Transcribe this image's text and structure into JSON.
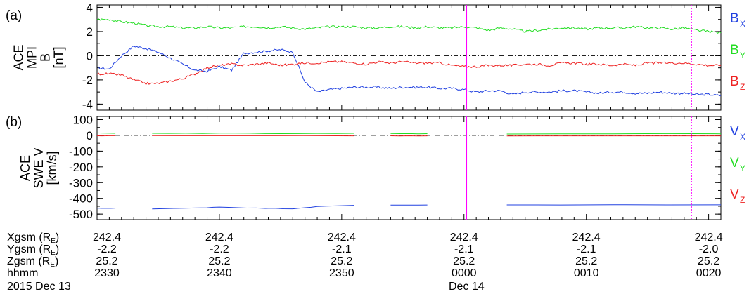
{
  "chart_data": [
    {
      "type": "line",
      "panel_label": "(a)",
      "ylabel_lines": [
        "ACE",
        "MPI",
        "B",
        "[nT]"
      ],
      "ylim": [
        -4.5,
        4.2
      ],
      "yticks": [
        -4,
        -2,
        0,
        2,
        4
      ],
      "x_range_minutes": [
        0,
        51
      ],
      "series": [
        {
          "name": "B",
          "subscript": "X",
          "color": "#2040e0",
          "x": [
            0,
            1,
            2,
            3,
            4,
            5,
            6,
            7,
            8,
            9,
            10,
            11,
            12,
            13,
            14,
            15,
            16,
            17,
            18,
            19,
            20,
            21,
            22,
            23,
            24,
            25,
            26,
            27,
            28,
            29,
            30,
            31,
            32,
            33,
            34,
            35,
            36,
            37,
            38,
            39,
            40,
            41,
            42,
            43,
            44,
            45,
            46,
            47,
            48,
            49,
            50,
            51
          ],
          "values": [
            -1.0,
            -1.1,
            0.0,
            0.8,
            0.6,
            0.3,
            -0.2,
            -0.7,
            -1.2,
            -1.3,
            -0.9,
            -1.2,
            0.2,
            0.3,
            0.4,
            0.5,
            0.3,
            -2.2,
            -3.0,
            -2.8,
            -2.7,
            -2.6,
            -2.6,
            -2.6,
            -2.7,
            -2.6,
            -2.6,
            -2.6,
            -2.7,
            -2.7,
            -2.8,
            -3.0,
            -2.9,
            -2.9,
            -3.2,
            -3.0,
            -3.0,
            -3.0,
            -2.9,
            -2.9,
            -3.0,
            -3.1,
            -3.0,
            -3.0,
            -3.1,
            -3.1,
            -3.0,
            -3.1,
            -3.1,
            -3.2,
            -3.2,
            -3.3
          ]
        },
        {
          "name": "B",
          "subscript": "Y",
          "color": "#22dd22",
          "x": [
            0,
            1,
            2,
            3,
            4,
            5,
            6,
            7,
            8,
            9,
            10,
            11,
            12,
            13,
            14,
            15,
            16,
            17,
            18,
            19,
            20,
            21,
            22,
            23,
            24,
            25,
            26,
            27,
            28,
            29,
            30,
            31,
            32,
            33,
            34,
            35,
            36,
            37,
            38,
            39,
            40,
            41,
            42,
            43,
            44,
            45,
            46,
            47,
            48,
            49,
            50,
            51
          ],
          "values": [
            3.0,
            3.0,
            2.8,
            2.7,
            2.5,
            2.4,
            2.4,
            2.3,
            2.3,
            2.4,
            2.3,
            2.3,
            2.4,
            2.4,
            2.3,
            2.4,
            2.3,
            2.2,
            2.3,
            2.4,
            2.4,
            2.4,
            2.3,
            2.3,
            2.4,
            2.4,
            2.3,
            2.4,
            2.3,
            2.3,
            2.4,
            2.3,
            2.1,
            2.3,
            2.2,
            2.0,
            2.1,
            2.2,
            2.3,
            2.3,
            2.2,
            2.3,
            2.3,
            2.3,
            2.4,
            2.3,
            2.3,
            2.2,
            2.3,
            2.1,
            2.0,
            1.9
          ]
        },
        {
          "name": "B",
          "subscript": "Z",
          "color": "#ee2222",
          "x": [
            0,
            1,
            2,
            3,
            4,
            5,
            6,
            7,
            8,
            9,
            10,
            11,
            12,
            13,
            14,
            15,
            16,
            17,
            18,
            19,
            20,
            21,
            22,
            23,
            24,
            25,
            26,
            27,
            28,
            29,
            30,
            31,
            32,
            33,
            34,
            35,
            36,
            37,
            38,
            39,
            40,
            41,
            42,
            43,
            44,
            45,
            46,
            47,
            48,
            49,
            50,
            51
          ],
          "values": [
            -1.5,
            -1.5,
            -1.6,
            -2.0,
            -2.3,
            -2.3,
            -2.1,
            -1.9,
            -1.5,
            -1.0,
            -0.8,
            -0.7,
            -0.8,
            -0.7,
            -0.6,
            -0.8,
            -0.7,
            -0.6,
            -0.6,
            -0.5,
            -0.5,
            -0.6,
            -0.7,
            -0.5,
            -0.6,
            -0.5,
            -0.6,
            -0.6,
            -0.6,
            -0.8,
            -0.9,
            -0.9,
            -0.8,
            -0.8,
            -0.8,
            -0.7,
            -0.7,
            -0.8,
            -0.6,
            -0.6,
            -0.7,
            -0.7,
            -0.8,
            -0.7,
            -0.8,
            -0.6,
            -0.6,
            -0.6,
            -0.6,
            -0.7,
            -0.8,
            -0.8
          ]
        }
      ]
    },
    {
      "type": "line",
      "panel_label": "(b)",
      "ylabel_lines": [
        "ACE",
        "SWE V",
        "[km/s]"
      ],
      "ylim": [
        -535,
        120
      ],
      "yticks": [
        -500,
        -400,
        -300,
        -200,
        -100,
        0,
        100
      ],
      "x_range_minutes": [
        0,
        51
      ],
      "series": [
        {
          "name": "V",
          "subscript": "X",
          "color": "#2040e0",
          "segments": [
            {
              "x": [
                0,
                1.5
              ],
              "values": [
                -463,
                -462
              ]
            },
            {
              "x": [
                4.5,
                8,
                10,
                13,
                16,
                18,
                21
              ],
              "values": [
                -467,
                -462,
                -455,
                -462,
                -465,
                -452,
                -444
              ]
            },
            {
              "x": [
                24,
                27
              ],
              "values": [
                -442,
                -442
              ]
            },
            {
              "x": [
                33.5,
                51
              ],
              "values": [
                -441,
                -441
              ]
            }
          ]
        },
        {
          "name": "V",
          "subscript": "Y",
          "color": "#22dd22",
          "segments": [
            {
              "x": [
                0,
                1.5
              ],
              "values": [
                15,
                13
              ]
            },
            {
              "x": [
                4.5,
                10,
                15,
                21
              ],
              "values": [
                12,
                14,
                12,
                13
              ]
            },
            {
              "x": [
                24,
                27
              ],
              "values": [
                11,
                11
              ]
            },
            {
              "x": [
                33.5,
                51
              ],
              "values": [
                10,
                10
              ]
            }
          ]
        },
        {
          "name": "V",
          "subscript": "Z",
          "color": "#ee2222",
          "segments": [
            {
              "x": [
                0,
                1.5
              ],
              "values": [
                -2,
                -2
              ]
            },
            {
              "x": [
                4.5,
                21
              ],
              "values": [
                -3,
                -3
              ]
            },
            {
              "x": [
                24,
                27
              ],
              "values": [
                -3,
                -3
              ]
            },
            {
              "x": [
                33.5,
                51
              ],
              "values": [
                -3,
                -3
              ]
            }
          ]
        }
      ]
    }
  ],
  "markers": [
    {
      "x_minutes": 30.2,
      "color": "#ff00ff",
      "style": "solid"
    },
    {
      "x_minutes": 48.6,
      "color": "#ff00ff",
      "style": "dotted"
    }
  ],
  "ephemeris": {
    "rows": [
      {
        "label": "Xgsm (R",
        "sub": "E",
        "close": ")",
        "values": [
          "242.4",
          "242.4",
          "242.4",
          "242.4",
          "242.4",
          "242.4"
        ]
      },
      {
        "label": "Ygsm (R",
        "sub": "E",
        "close": ")",
        "values": [
          "-2.2",
          "-2.2",
          "-2.1",
          "-2.1",
          "-2.1",
          "-2.0"
        ]
      },
      {
        "label": "Zgsm (R",
        "sub": "E",
        "close": ")",
        "values": [
          "25.2",
          "25.2",
          "25.2",
          "25.2",
          "25.2",
          "25.2"
        ]
      },
      {
        "label": "hhmm",
        "sub": "",
        "close": "",
        "values": [
          "2330",
          "2340",
          "2350",
          "0000",
          "0010",
          "0020"
        ]
      }
    ],
    "tick_minutes": [
      0,
      10,
      20,
      30,
      40,
      50
    ]
  },
  "dates": [
    {
      "text": "2015 Dec 13"
    },
    {
      "text": "Dec 14"
    }
  ]
}
